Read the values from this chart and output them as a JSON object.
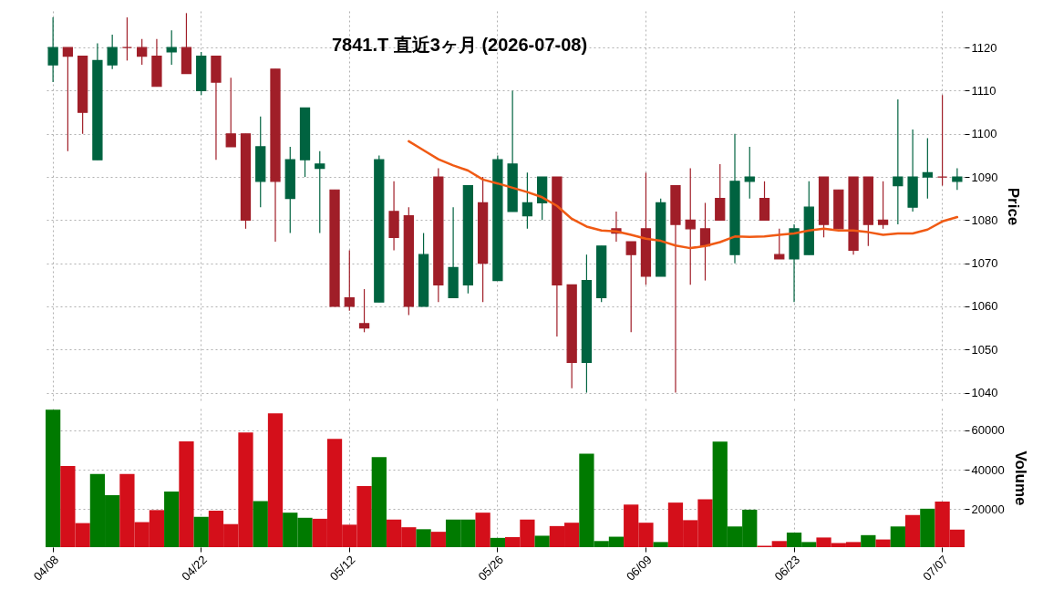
{
  "chart_data": [
    {
      "type": "candlestick",
      "title": "7841.T 直近3ヶ月 (2026-07-08)",
      "ylabel": "Price",
      "categories": [
        null,
        null,
        null,
        null,
        null,
        null,
        null,
        null,
        null,
        null,
        null,
        null,
        null,
        null,
        null,
        null,
        null,
        null,
        null,
        null,
        null,
        null,
        null,
        null,
        null,
        null,
        null,
        null,
        null,
        null,
        null,
        null,
        null,
        null,
        null,
        null,
        null,
        null,
        null,
        null,
        null,
        null,
        null,
        null,
        null,
        null,
        null,
        null,
        null,
        null,
        null,
        null,
        null,
        null,
        null,
        null,
        null,
        null,
        null,
        null,
        null,
        null
      ],
      "ohlc": [
        [
          1116,
          1127,
          1112,
          1120
        ],
        [
          1120,
          1120,
          1096,
          1118
        ],
        [
          1118,
          1118,
          1100,
          1105
        ],
        [
          1094,
          1121,
          1094,
          1117
        ],
        [
          1116,
          1123,
          1115,
          1120
        ],
        [
          1120,
          1127,
          1117,
          1120
        ],
        [
          1120,
          1122,
          1116,
          1118
        ],
        [
          1118,
          1122,
          1111,
          1111
        ],
        [
          1119,
          1124,
          1116,
          1120
        ],
        [
          1120,
          1128,
          1114,
          1114
        ],
        [
          1110,
          1119,
          1109,
          1118
        ],
        [
          1118,
          1118,
          1094,
          1112
        ],
        [
          1100,
          1113,
          1097,
          1097
        ],
        [
          1100,
          1100,
          1078,
          1080
        ],
        [
          1089,
          1104,
          1083,
          1097
        ],
        [
          1115,
          1115,
          1075,
          1089
        ],
        [
          1085,
          1097,
          1077,
          1094
        ],
        [
          1094,
          1106,
          1090,
          1106
        ],
        [
          1092,
          1096,
          1077,
          1093
        ],
        [
          1087,
          1087,
          1060,
          1060
        ],
        [
          1062,
          1073,
          1059,
          1060
        ],
        [
          1056,
          1064,
          1054,
          1055
        ],
        [
          1061,
          1095,
          1061,
          1094
        ],
        [
          1082,
          1089,
          1073,
          1076
        ],
        [
          1081,
          1083,
          1058,
          1060
        ],
        [
          1060,
          1077,
          1060,
          1072
        ],
        [
          1090,
          1092,
          1061,
          1065
        ],
        [
          1062,
          1083,
          1062,
          1069
        ],
        [
          1065,
          1088,
          1063,
          1088
        ],
        [
          1084,
          1090,
          1061,
          1070
        ],
        [
          1066,
          1095,
          1066,
          1094
        ],
        [
          1082,
          1110,
          1082,
          1093
        ],
        [
          1081,
          1091,
          1078,
          1084
        ],
        [
          1084,
          1090,
          1080,
          1090
        ],
        [
          1090,
          1090,
          1053,
          1065
        ],
        [
          1065,
          1065,
          1041,
          1047
        ],
        [
          1047,
          1072,
          1040,
          1066
        ],
        [
          1062,
          1074,
          1061,
          1074
        ],
        [
          1078,
          1082,
          1075,
          1077
        ],
        [
          1075,
          1075,
          1054,
          1072
        ],
        [
          1078,
          1091,
          1065,
          1067
        ],
        [
          1067,
          1085,
          1067,
          1084
        ],
        [
          1088,
          1088,
          1040,
          1079
        ],
        [
          1080,
          1092,
          1065,
          1078
        ],
        [
          1078,
          1084,
          1066,
          1074
        ],
        [
          1085,
          1093,
          1080,
          1080
        ],
        [
          1072,
          1100,
          1070,
          1089
        ],
        [
          1089,
          1097,
          1085,
          1090
        ],
        [
          1085,
          1089,
          1080,
          1080
        ],
        [
          1072,
          1078,
          1071,
          1071
        ],
        [
          1071,
          1079,
          1061,
          1078
        ],
        [
          1072,
          1089,
          1072,
          1083
        ],
        [
          1090,
          1090,
          1076,
          1079
        ],
        [
          1087,
          1087,
          1078,
          1078
        ],
        [
          1090,
          1090,
          1072,
          1073
        ],
        [
          1090,
          1090,
          1074,
          1079
        ],
        [
          1080,
          1089,
          1078,
          1079
        ],
        [
          1088,
          1108,
          1079,
          1090
        ],
        [
          1083,
          1101,
          1082,
          1090
        ],
        [
          1090,
          1099,
          1085,
          1091
        ],
        [
          1090,
          1109,
          1088,
          1090
        ],
        [
          1089,
          1092,
          1087,
          1090
        ]
      ],
      "colors": [
        "#006340",
        "#a01e28",
        "#a01e28",
        "#006340",
        "#006340",
        "#a01e28",
        "#a01e28",
        "#a01e28",
        "#006340",
        "#a01e28",
        "#006340",
        "#a01e28",
        "#a01e28",
        "#a01e28",
        "#006340",
        "#a01e28",
        "#006340",
        "#006340",
        "#006340",
        "#a01e28",
        "#a01e28",
        "#a01e28",
        "#006340",
        "#a01e28",
        "#a01e28",
        "#006340",
        "#a01e28",
        "#006340",
        "#006340",
        "#a01e28",
        "#006340",
        "#006340",
        "#006340",
        "#006340",
        "#a01e28",
        "#a01e28",
        "#006340",
        "#006340",
        "#a01e28",
        "#a01e28",
        "#a01e28",
        "#006340",
        "#a01e28",
        "#a01e28",
        "#a01e28",
        "#a01e28",
        "#006340",
        "#006340",
        "#a01e28",
        "#a01e28",
        "#006340",
        "#006340",
        "#a01e28",
        "#a01e28",
        "#a01e28",
        "#a01e28",
        "#a01e28",
        "#006340",
        "#006340",
        "#006340",
        "#a01e28",
        "#006340"
      ],
      "series": [
        {
          "type": "line",
          "color": "#f05a14",
          "values": [
            null,
            null,
            null,
            null,
            null,
            null,
            null,
            null,
            null,
            null,
            null,
            null,
            null,
            null,
            null,
            null,
            null,
            null,
            null,
            null,
            null,
            null,
            null,
            null,
            1098.3,
            1096.2,
            1094.1,
            1092.7,
            1091.5,
            1089.4,
            1088.5,
            1087.5,
            1086.5,
            1085.3,
            1083.3,
            1080.3,
            1078.5,
            1077.6,
            1077.4,
            1076.6,
            1075.7,
            1075.2,
            1074.1,
            1073.5,
            1074.0,
            1074.9,
            1076.2,
            1076.1,
            1076.2,
            1076.6,
            1076.9,
            1077.6,
            1078.0,
            1077.6,
            1077.6,
            1077.2,
            1076.6,
            1076.9,
            1076.9,
            1077.8,
            1079.7,
            1080.7
          ]
        }
      ],
      "ylim": [
        1038,
        1128.5
      ],
      "yticks": [
        1040,
        1050,
        1060,
        1070,
        1080,
        1090,
        1100,
        1110,
        1120
      ],
      "grid": true,
      "tick_labels": "y"
    },
    {
      "type": "bar",
      "ylabel": "Volume",
      "categories": [
        "04/08",
        null,
        null,
        null,
        null,
        null,
        null,
        null,
        null,
        null,
        "04/22",
        null,
        null,
        null,
        null,
        null,
        null,
        null,
        null,
        null,
        "05/12",
        null,
        null,
        null,
        null,
        null,
        null,
        null,
        null,
        null,
        "05/26",
        null,
        null,
        null,
        null,
        null,
        null,
        null,
        null,
        null,
        "06/09",
        null,
        null,
        null,
        null,
        null,
        null,
        null,
        null,
        null,
        "06/23",
        null,
        null,
        null,
        null,
        null,
        null,
        null,
        null,
        null,
        "07/07",
        null
      ],
      "values": [
        70400,
        41900,
        12900,
        37800,
        27100,
        37800,
        13400,
        19500,
        28900,
        54300,
        16100,
        19200,
        12400,
        58900,
        24100,
        68600,
        18200,
        15600,
        15100,
        55600,
        12100,
        31700,
        46400,
        14700,
        10800,
        9800,
        8500,
        14700,
        14700,
        18200,
        5400,
        5800,
        14700,
        6500,
        11400,
        13100,
        48100,
        3800,
        6000,
        22300,
        13100,
        3300,
        23300,
        14400,
        25000,
        54200,
        11200,
        19700,
        1400,
        3800,
        8100,
        3300,
        5600,
        2800,
        3300,
        6800,
        4600,
        11200,
        17000,
        20200,
        23800,
        9600
      ],
      "colors": [
        "#007a00",
        "#d40f1a",
        "#d40f1a",
        "#007a00",
        "#007a00",
        "#d40f1a",
        "#d40f1a",
        "#d40f1a",
        "#007a00",
        "#d40f1a",
        "#007a00",
        "#d40f1a",
        "#d40f1a",
        "#d40f1a",
        "#007a00",
        "#d40f1a",
        "#007a00",
        "#007a00",
        "#d40f1a",
        "#d40f1a",
        "#d40f1a",
        "#d40f1a",
        "#007a00",
        "#d40f1a",
        "#d40f1a",
        "#007a00",
        "#d40f1a",
        "#007a00",
        "#007a00",
        "#d40f1a",
        "#007a00",
        "#d40f1a",
        "#d40f1a",
        "#007a00",
        "#d40f1a",
        "#d40f1a",
        "#007a00",
        "#007a00",
        "#007a00",
        "#d40f1a",
        "#d40f1a",
        "#007a00",
        "#d40f1a",
        "#d40f1a",
        "#d40f1a",
        "#007a00",
        "#007a00",
        "#007a00",
        "#d40f1a",
        "#d40f1a",
        "#007a00",
        "#007a00",
        "#d40f1a",
        "#d40f1a",
        "#d40f1a",
        "#007a00",
        "#d40f1a",
        "#007a00",
        "#d40f1a",
        "#007a00",
        "#d40f1a",
        "#d40f1a"
      ],
      "ylim": [
        700,
        71000
      ],
      "yticks": [
        20000,
        40000,
        60000
      ],
      "grid": true
    }
  ]
}
